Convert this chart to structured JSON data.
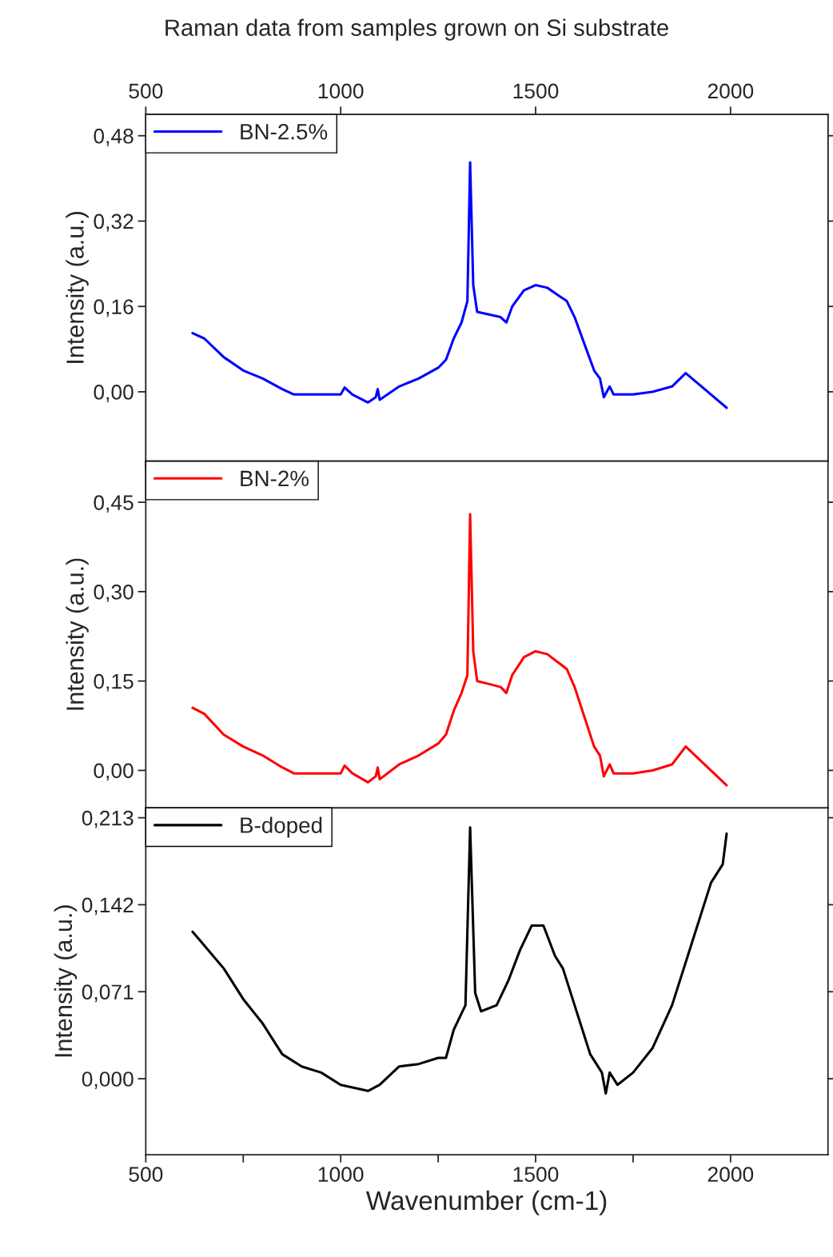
{
  "chart_data": [
    {
      "type": "line",
      "title": "Raman data from samples grown on Si substrate",
      "ylabel": "Intensity (a.u.)",
      "legend": "top left",
      "grid": false,
      "tick_labels": "y",
      "xlim": [
        500,
        2250
      ],
      "xticks": [
        {
          "value": 500,
          "label": null
        },
        {
          "value": 750,
          "label": null
        },
        {
          "value": 1000,
          "label": null
        },
        {
          "value": 1250,
          "label": null
        },
        {
          "value": 1500,
          "label": null
        },
        {
          "value": 1750,
          "label": null
        },
        {
          "value": 2000,
          "label": null
        }
      ],
      "x2lim": [
        500,
        2250
      ],
      "x2ticks": [
        500,
        1000,
        1500,
        2000
      ],
      "ylim": [
        -0.13,
        0.52
      ],
      "yticks": [
        {
          "value": 0.0,
          "label": "0,00"
        },
        {
          "value": 0.16,
          "label": "0,16"
        },
        {
          "value": 0.32,
          "label": "0,32"
        },
        {
          "value": 0.48,
          "label": "0,48"
        }
      ],
      "series": [
        {
          "name": "BN-2.5%",
          "color": "#0000ff",
          "x": [
            620,
            650,
            700,
            750,
            800,
            850,
            880,
            950,
            1000,
            1010,
            1030,
            1070,
            1090,
            1095,
            1100,
            1150,
            1200,
            1250,
            1270,
            1290,
            1310,
            1325,
            1332,
            1340,
            1350,
            1380,
            1410,
            1425,
            1440,
            1470,
            1500,
            1530,
            1560,
            1580,
            1600,
            1630,
            1650,
            1665,
            1675,
            1690,
            1700,
            1750,
            1800,
            1850,
            1885,
            1990
          ],
          "values": [
            0.11,
            0.1,
            0.065,
            0.04,
            0.025,
            0.005,
            -0.005,
            -0.005,
            -0.005,
            0.008,
            -0.005,
            -0.02,
            -0.01,
            0.005,
            -0.015,
            0.01,
            0.025,
            0.045,
            0.06,
            0.1,
            0.13,
            0.17,
            0.43,
            0.2,
            0.15,
            0.145,
            0.14,
            0.13,
            0.16,
            0.19,
            0.2,
            0.195,
            0.18,
            0.17,
            0.14,
            0.08,
            0.04,
            0.025,
            -0.01,
            0.01,
            -0.005,
            -0.005,
            0.0,
            0.01,
            0.035,
            -0.03
          ]
        }
      ]
    },
    {
      "type": "line",
      "ylabel": "Intensity (a.u.)",
      "legend": "top left",
      "grid": false,
      "tick_labels": "y",
      "xlim": [
        500,
        2250
      ],
      "xticks": [
        {
          "value": 500,
          "label": null
        },
        {
          "value": 750,
          "label": null
        },
        {
          "value": 1000,
          "label": null
        },
        {
          "value": 1250,
          "label": null
        },
        {
          "value": 1500,
          "label": null
        },
        {
          "value": 1750,
          "label": null
        },
        {
          "value": 2000,
          "label": null
        }
      ],
      "ylim": [
        -0.063,
        0.519
      ],
      "yticks": [
        {
          "value": 0.0,
          "label": "0,00"
        },
        {
          "value": 0.15,
          "label": "0,15"
        },
        {
          "value": 0.3,
          "label": "0,30"
        },
        {
          "value": 0.45,
          "label": "0,45"
        }
      ],
      "series": [
        {
          "name": "BN-2%",
          "color": "#ff0000",
          "x": [
            620,
            650,
            700,
            750,
            800,
            850,
            880,
            950,
            1000,
            1010,
            1030,
            1070,
            1090,
            1095,
            1100,
            1150,
            1200,
            1250,
            1270,
            1290,
            1310,
            1325,
            1332,
            1340,
            1350,
            1380,
            1410,
            1425,
            1440,
            1470,
            1500,
            1530,
            1560,
            1580,
            1600,
            1630,
            1650,
            1665,
            1675,
            1690,
            1700,
            1750,
            1800,
            1850,
            1885,
            1990
          ],
          "values": [
            0.105,
            0.095,
            0.06,
            0.04,
            0.025,
            0.005,
            -0.005,
            -0.005,
            -0.005,
            0.008,
            -0.005,
            -0.02,
            -0.01,
            0.005,
            -0.015,
            0.01,
            0.025,
            0.045,
            0.06,
            0.1,
            0.13,
            0.16,
            0.43,
            0.2,
            0.15,
            0.145,
            0.14,
            0.13,
            0.16,
            0.19,
            0.2,
            0.195,
            0.18,
            0.17,
            0.14,
            0.08,
            0.04,
            0.025,
            -0.01,
            0.01,
            -0.005,
            -0.005,
            0.0,
            0.01,
            0.04,
            -0.025
          ]
        }
      ]
    },
    {
      "type": "line",
      "xlabel": "Wavenumber (cm-1)",
      "ylabel": "Intensity (a.u.)",
      "legend": "top left",
      "grid": false,
      "xlim": [
        500,
        2250
      ],
      "xticks": [
        500,
        {
          "value": 750,
          "label": null
        },
        1000,
        {
          "value": 1250,
          "label": null
        },
        1500,
        {
          "value": 1750,
          "label": null
        },
        2000
      ],
      "ylim": [
        -0.062,
        0.221
      ],
      "yticks": [
        {
          "value": 0.0,
          "label": "0,000"
        },
        {
          "value": 0.071,
          "label": "0,071"
        },
        {
          "value": 0.142,
          "label": "0,142"
        },
        {
          "value": 0.213,
          "label": "0,213"
        }
      ],
      "series": [
        {
          "name": "B-doped",
          "color": "#000000",
          "x": [
            620,
            700,
            750,
            800,
            850,
            900,
            950,
            1000,
            1070,
            1100,
            1150,
            1200,
            1250,
            1270,
            1290,
            1320,
            1332,
            1345,
            1360,
            1400,
            1430,
            1460,
            1490,
            1520,
            1550,
            1570,
            1600,
            1640,
            1670,
            1680,
            1690,
            1710,
            1750,
            1800,
            1850,
            1900,
            1950,
            1980,
            1990
          ],
          "values": [
            0.12,
            0.09,
            0.065,
            0.045,
            0.02,
            0.01,
            0.005,
            -0.005,
            -0.01,
            -0.005,
            0.01,
            0.012,
            0.017,
            0.017,
            0.04,
            0.06,
            0.205,
            0.07,
            0.055,
            0.06,
            0.08,
            0.105,
            0.125,
            0.125,
            0.1,
            0.09,
            0.06,
            0.02,
            0.005,
            -0.012,
            0.005,
            -0.005,
            0.005,
            0.025,
            0.06,
            0.11,
            0.16,
            0.175,
            0.2
          ]
        }
      ]
    }
  ]
}
